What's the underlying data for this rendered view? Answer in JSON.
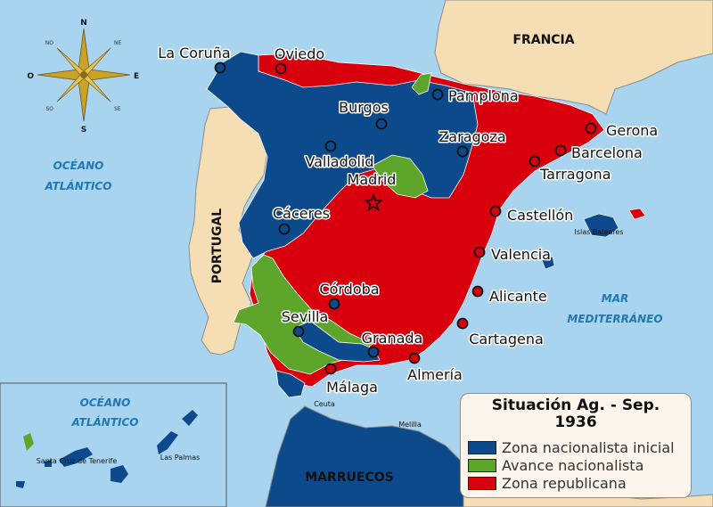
{
  "title": "Situación Ag. - Sep.",
  "year": "1936",
  "legend": [
    {
      "label": "Zona nacionalista inicial",
      "color": "#0d4a8c"
    },
    {
      "label": "Avance nacionalista",
      "color": "#5ea52b"
    },
    {
      "label": "Zona republicana",
      "color": "#d8000c"
    }
  ],
  "colors": {
    "sea": "#a8d4ef",
    "foreign_land": "#f5deb3",
    "nationalist": "#0d4a8c",
    "advance": "#5ea52b",
    "republican": "#d8000c"
  },
  "cities": {
    "coruna": {
      "name": "La Coruña",
      "zone": "nationalist"
    },
    "oviedo": {
      "name": "Oviedo",
      "zone": "republican"
    },
    "pamplona": {
      "name": "Pamplona",
      "zone": "nationalist"
    },
    "burgos": {
      "name": "Burgos",
      "zone": "nationalist"
    },
    "gerona": {
      "name": "Gerona",
      "zone": "republican"
    },
    "zaragoza": {
      "name": "Zaragoza",
      "zone": "nationalist"
    },
    "barcelona": {
      "name": "Barcelona",
      "zone": "republican"
    },
    "valladolid": {
      "name": "Valladolid",
      "zone": "nationalist"
    },
    "tarragona": {
      "name": "Tarragona",
      "zone": "republican"
    },
    "madrid": {
      "name": "Madrid",
      "zone": "republican",
      "capital": true
    },
    "castellon": {
      "name": "Castellón",
      "zone": "republican"
    },
    "caceres": {
      "name": "Cáceres",
      "zone": "nationalist"
    },
    "valencia": {
      "name": "Valencia",
      "zone": "republican"
    },
    "cordoba": {
      "name": "Córdoba",
      "zone": "nationalist"
    },
    "alicante": {
      "name": "Alicante",
      "zone": "republican"
    },
    "sevilla": {
      "name": "Sevilla",
      "zone": "nationalist"
    },
    "granada": {
      "name": "Granada",
      "zone": "nationalist"
    },
    "cartagena": {
      "name": "Cartagena",
      "zone": "republican"
    },
    "almeria": {
      "name": "Almería",
      "zone": "republican"
    },
    "malaga": {
      "name": "Málaga",
      "zone": "republican"
    }
  },
  "labels": {
    "francia": "FRANCIA",
    "portugal": "PORTUGAL",
    "marruecos": "MARRUECOS",
    "oceano_1": "OCÉANO",
    "oceano_2": "ATLÁNTICO",
    "mar_1": "MAR",
    "mar_2": "MEDITERRÁNEO",
    "baleares": "Islas Baleares",
    "ceuta": "Ceuta",
    "melilla": "Melilla",
    "canarias_oceano_1": "OCÉANO",
    "canarias_oceano_2": "ATLÁNTICO",
    "tenerife": "Santa Cruz de Tenerife",
    "las_palmas": "Las Palmas"
  },
  "compass": {
    "n": "N",
    "s": "S",
    "e": "E",
    "o": "O",
    "ne": "NE",
    "no": "NO",
    "se": "SE",
    "so": "SO"
  }
}
